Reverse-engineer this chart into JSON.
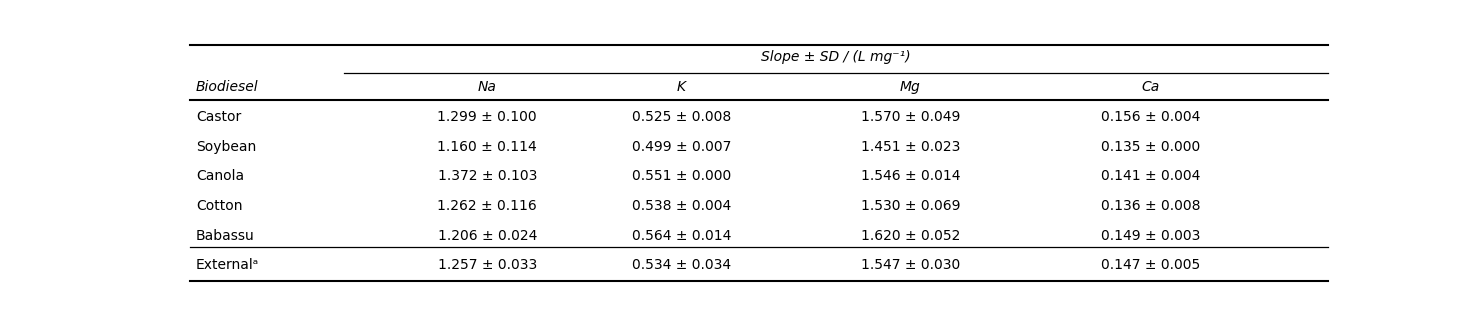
{
  "title": "Slope ± SD / (L mg⁻¹)",
  "col_headers": [
    "Na",
    "K",
    "Mg",
    "Ca"
  ],
  "row_labels": [
    "Castor",
    "Soybean",
    "Canola",
    "Cotton",
    "Babassu",
    "Externalᵃ"
  ],
  "data": [
    [
      "1.299 ± 0.100",
      "0.525 ± 0.008",
      "1.570 ± 0.049",
      "0.156 ± 0.004"
    ],
    [
      "1.160 ± 0.114",
      "0.499 ± 0.007",
      "1.451 ± 0.023",
      "0.135 ± 0.000"
    ],
    [
      "1.372 ± 0.103",
      "0.551 ± 0.000",
      "1.546 ± 0.014",
      "0.141 ± 0.004"
    ],
    [
      "1.262 ± 0.116",
      "0.538 ± 0.004",
      "1.530 ± 0.069",
      "0.136 ± 0.008"
    ],
    [
      "1.206 ± 0.024",
      "0.564 ± 0.014",
      "1.620 ± 0.052",
      "0.149 ± 0.003"
    ],
    [
      "1.257 ± 0.033",
      "0.534 ± 0.034",
      "1.547 ± 0.030",
      "0.147 ± 0.005"
    ]
  ],
  "background_color": "#ffffff",
  "text_color": "#000000",
  "font_size": 10,
  "header_font_size": 10
}
